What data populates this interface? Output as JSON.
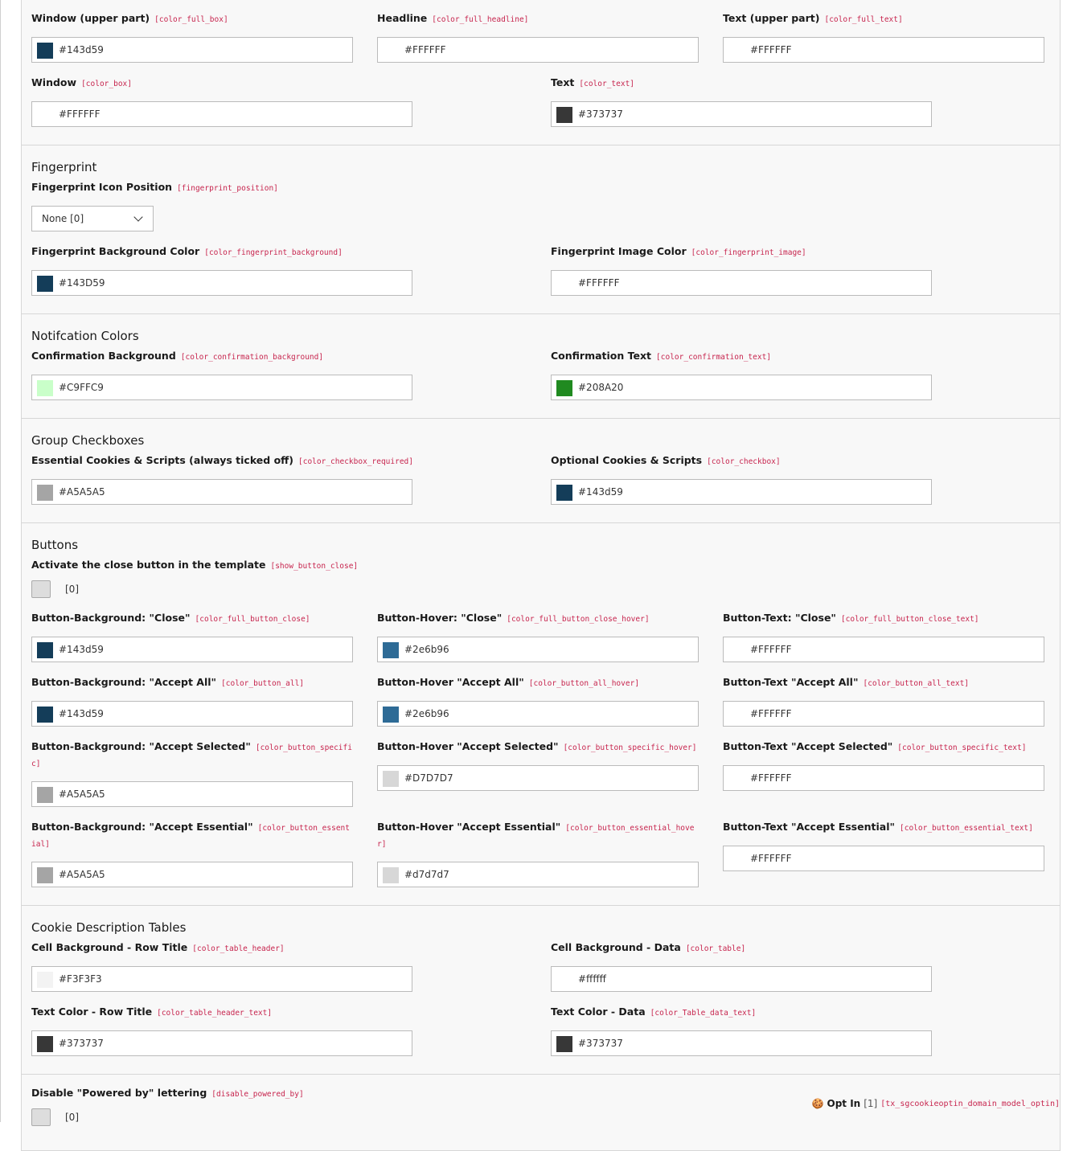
{
  "sections": [
    {
      "title": "",
      "rows": [
        {
          "cols": 3,
          "fields": [
            {
              "type": "color",
              "label": "Window (upper part)",
              "key": "[color_full_box]",
              "value": "#143d59",
              "swatch": "#143d59"
            },
            {
              "type": "color",
              "label": "Headline",
              "key": "[color_full_headline]",
              "value": "#FFFFFF",
              "swatch": "#FFFFFF"
            },
            {
              "type": "color",
              "label": "Text (upper part)",
              "key": "[color_full_text]",
              "value": "#FFFFFF",
              "swatch": "#FFFFFF"
            }
          ]
        },
        {
          "cols": 2,
          "fields": [
            {
              "type": "color",
              "label": "Window",
              "key": "[color_box]",
              "value": "#FFFFFF",
              "swatch": "#FFFFFF"
            },
            {
              "type": "color",
              "label": "Text",
              "key": "[color_text]",
              "value": "#373737",
              "swatch": "#373737"
            }
          ]
        }
      ]
    },
    {
      "title": "Fingerprint",
      "rows": [
        {
          "cols": 1,
          "fields": [
            {
              "type": "select",
              "label": "Fingerprint Icon Position",
              "key": "[fingerprint_position]",
              "value": "None [0]"
            }
          ]
        },
        {
          "cols": 2,
          "fields": [
            {
              "type": "color",
              "label": "Fingerprint Background Color",
              "key": "[color_fingerprint_background]",
              "value": "#143D59",
              "swatch": "#143D59"
            },
            {
              "type": "color",
              "label": "Fingerprint Image Color",
              "key": "[color_fingerprint_image]",
              "value": "#FFFFFF",
              "swatch": "#FFFFFF"
            }
          ]
        }
      ]
    },
    {
      "title": "Notifcation Colors",
      "rows": [
        {
          "cols": 2,
          "fields": [
            {
              "type": "color",
              "label": "Confirmation Background",
              "key": "[color_confirmation_background]",
              "value": "#C9FFC9",
              "swatch": "#C9FFC9"
            },
            {
              "type": "color",
              "label": "Confirmation Text",
              "key": "[color_confirmation_text]",
              "value": "#208A20",
              "swatch": "#208A20"
            }
          ]
        }
      ]
    },
    {
      "title": "Group Checkboxes",
      "rows": [
        {
          "cols": 2,
          "fields": [
            {
              "type": "color",
              "label": "Essential Cookies & Scripts (always ticked off)",
              "key": "[color_checkbox_required]",
              "value": "#A5A5A5",
              "swatch": "#A5A5A5"
            },
            {
              "type": "color",
              "label": "Optional Cookies & Scripts",
              "key": "[color_checkbox]",
              "value": "#143d59",
              "swatch": "#143d59"
            }
          ]
        }
      ]
    },
    {
      "title": "Buttons",
      "rows": [
        {
          "cols": 1,
          "fields": [
            {
              "type": "checkbox",
              "label": "Activate the close button in the template",
              "key": "[show_button_close]",
              "value": "[0]"
            }
          ]
        },
        {
          "cols": 3,
          "fields": [
            {
              "type": "color",
              "label": "Button-Background: \"Close\"",
              "key": "[color_full_button_close]",
              "value": "#143d59",
              "swatch": "#143d59"
            },
            {
              "type": "color",
              "label": "Button-Hover: \"Close\"",
              "key": "[color_full_button_close_hover]",
              "value": "#2e6b96",
              "swatch": "#2e6b96"
            },
            {
              "type": "color",
              "label": "Button-Text: \"Close\"",
              "key": "[color_full_button_close_text]",
              "value": "#FFFFFF",
              "swatch": "#FFFFFF"
            }
          ]
        },
        {
          "cols": 3,
          "fields": [
            {
              "type": "color",
              "label": "Button-Background: \"Accept All\"",
              "key": "[color_button_all]",
              "value": "#143d59",
              "swatch": "#143d59"
            },
            {
              "type": "color",
              "label": "Button-Hover \"Accept All\"",
              "key": "[color_button_all_hover]",
              "value": "#2e6b96",
              "swatch": "#2e6b96"
            },
            {
              "type": "color",
              "label": "Button-Text \"Accept All\"",
              "key": "[color_button_all_text]",
              "value": "#FFFFFF",
              "swatch": "#FFFFFF"
            }
          ]
        },
        {
          "cols": 3,
          "fields": [
            {
              "type": "color",
              "label": "Button-Background: \"Accept Selected\"",
              "key": "[color_button_specific]",
              "value": "#A5A5A5",
              "swatch": "#A5A5A5"
            },
            {
              "type": "color",
              "label": "Button-Hover \"Accept Selected\"",
              "key": "[color_button_specific_hover]",
              "value": "#D7D7D7",
              "swatch": "#D7D7D7"
            },
            {
              "type": "color",
              "label": "Button-Text \"Accept Selected\"",
              "key": "[color_button_specific_text]",
              "value": "#FFFFFF",
              "swatch": "#FFFFFF"
            }
          ]
        },
        {
          "cols": 3,
          "fields": [
            {
              "type": "color",
              "label": "Button-Background: \"Accept Essential\"",
              "key": "[color_button_essential]",
              "value": "#A5A5A5",
              "swatch": "#A5A5A5"
            },
            {
              "type": "color",
              "label": "Button-Hover \"Accept Essential\"",
              "key": "[color_button_essential_hover]",
              "value": "#d7d7d7",
              "swatch": "#d7d7d7"
            },
            {
              "type": "color",
              "label": "Button-Text \"Accept Essential\"",
              "key": "[color_button_essential_text]",
              "value": "#FFFFFF",
              "swatch": "#FFFFFF"
            }
          ]
        }
      ]
    },
    {
      "title": "Cookie Description Tables",
      "rows": [
        {
          "cols": 2,
          "fields": [
            {
              "type": "color",
              "label": "Cell Background - Row Title",
              "key": "[color_table_header]",
              "value": "#F3F3F3",
              "swatch": "#F3F3F3"
            },
            {
              "type": "color",
              "label": "Cell Background - Data",
              "key": "[color_table]",
              "value": "#ffffff",
              "swatch": "#ffffff"
            }
          ]
        },
        {
          "cols": 2,
          "fields": [
            {
              "type": "color",
              "label": "Text Color - Row Title",
              "key": "[color_table_header_text]",
              "value": "#373737",
              "swatch": "#373737"
            },
            {
              "type": "color",
              "label": "Text Color - Data",
              "key": "[color_Table_data_text]",
              "value": "#373737",
              "swatch": "#373737"
            }
          ]
        }
      ]
    },
    {
      "title": "",
      "rows": [
        {
          "cols": 1,
          "fields": [
            {
              "type": "checkbox",
              "label": "Disable \"Powered by\" lettering",
              "key": "[disable_powered_by]",
              "value": "[0]"
            }
          ]
        }
      ]
    }
  ],
  "footer": {
    "icon": "cookie-icon",
    "title": "Opt In",
    "id": "[1]",
    "table": "[tx_sgcookieoptin_domain_model_optin]"
  }
}
